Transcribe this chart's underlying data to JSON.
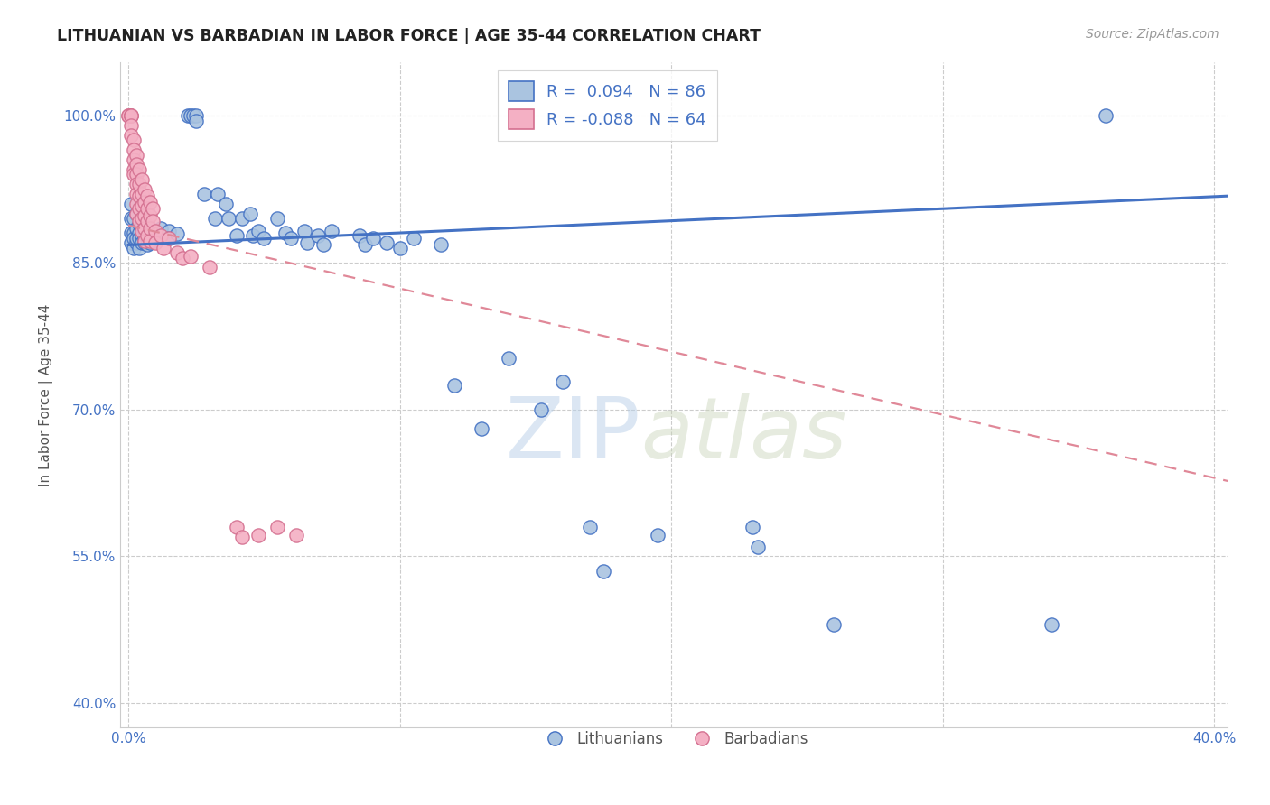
{
  "title": "LITHUANIAN VS BARBADIAN IN LABOR FORCE | AGE 35-44 CORRELATION CHART",
  "source": "Source: ZipAtlas.com",
  "ylabel": "In Labor Force | Age 35-44",
  "y_ticks": [
    0.4,
    0.55,
    0.7,
    0.85,
    1.0
  ],
  "y_tick_labels": [
    "40.0%",
    "55.0%",
    "70.0%",
    "85.0%",
    "100.0%"
  ],
  "xlim": [
    -0.003,
    0.405
  ],
  "ylim": [
    0.375,
    1.055
  ],
  "background_color": "#ffffff",
  "grid_color": "#cccccc",
  "watermark_text": "ZIPatlas",
  "legend_R_blue": "0.094",
  "legend_N_blue": "86",
  "legend_R_pink": "-0.088",
  "legend_N_pink": "64",
  "blue_fill": "#aac4e0",
  "blue_edge": "#4472c4",
  "pink_fill": "#f4b0c4",
  "pink_edge": "#d47090",
  "blue_trend": [
    0.0,
    0.868,
    0.405,
    0.918
  ],
  "pink_trend": [
    0.0,
    0.888,
    0.405,
    0.627
  ],
  "blue_scatter": [
    [
      0.001,
      0.88
    ],
    [
      0.001,
      0.895
    ],
    [
      0.001,
      0.87
    ],
    [
      0.001,
      0.91
    ],
    [
      0.002,
      0.865
    ],
    [
      0.002,
      0.88
    ],
    [
      0.002,
      0.895
    ],
    [
      0.002,
      0.875
    ],
    [
      0.003,
      0.87
    ],
    [
      0.003,
      0.885
    ],
    [
      0.003,
      0.9
    ],
    [
      0.003,
      0.875
    ],
    [
      0.004,
      0.88
    ],
    [
      0.004,
      0.89
    ],
    [
      0.004,
      0.875
    ],
    [
      0.004,
      0.865
    ],
    [
      0.005,
      0.878
    ],
    [
      0.005,
      0.888
    ],
    [
      0.005,
      0.898
    ],
    [
      0.005,
      0.87
    ],
    [
      0.006,
      0.882
    ],
    [
      0.006,
      0.875
    ],
    [
      0.006,
      0.89
    ],
    [
      0.006,
      0.87
    ],
    [
      0.007,
      0.88
    ],
    [
      0.007,
      0.875
    ],
    [
      0.007,
      0.868
    ],
    [
      0.008,
      0.885
    ],
    [
      0.008,
      0.878
    ],
    [
      0.008,
      0.87
    ],
    [
      0.009,
      0.882
    ],
    [
      0.009,
      0.875
    ],
    [
      0.01,
      0.88
    ],
    [
      0.01,
      0.872
    ],
    [
      0.012,
      0.878
    ],
    [
      0.012,
      0.885
    ],
    [
      0.015,
      0.882
    ],
    [
      0.015,
      0.875
    ],
    [
      0.018,
      0.879
    ],
    [
      0.022,
      1.0
    ],
    [
      0.023,
      1.0
    ],
    [
      0.024,
      1.0
    ],
    [
      0.025,
      1.0
    ],
    [
      0.025,
      0.995
    ],
    [
      0.028,
      0.92
    ],
    [
      0.032,
      0.895
    ],
    [
      0.033,
      0.92
    ],
    [
      0.036,
      0.91
    ],
    [
      0.037,
      0.895
    ],
    [
      0.04,
      0.878
    ],
    [
      0.042,
      0.895
    ],
    [
      0.045,
      0.9
    ],
    [
      0.046,
      0.878
    ],
    [
      0.048,
      0.882
    ],
    [
      0.05,
      0.875
    ],
    [
      0.055,
      0.895
    ],
    [
      0.058,
      0.88
    ],
    [
      0.06,
      0.875
    ],
    [
      0.065,
      0.882
    ],
    [
      0.066,
      0.87
    ],
    [
      0.07,
      0.878
    ],
    [
      0.072,
      0.868
    ],
    [
      0.075,
      0.882
    ],
    [
      0.085,
      0.878
    ],
    [
      0.087,
      0.868
    ],
    [
      0.09,
      0.875
    ],
    [
      0.095,
      0.87
    ],
    [
      0.1,
      0.865
    ],
    [
      0.105,
      0.875
    ],
    [
      0.115,
      0.868
    ],
    [
      0.12,
      0.725
    ],
    [
      0.13,
      0.68
    ],
    [
      0.14,
      0.752
    ],
    [
      0.152,
      0.7
    ],
    [
      0.16,
      0.728
    ],
    [
      0.17,
      0.58
    ],
    [
      0.175,
      0.535
    ],
    [
      0.195,
      0.572
    ],
    [
      0.23,
      0.58
    ],
    [
      0.232,
      0.56
    ],
    [
      0.26,
      0.48
    ],
    [
      0.34,
      0.48
    ],
    [
      0.36,
      1.0
    ]
  ],
  "pink_scatter": [
    [
      0.0,
      1.0
    ],
    [
      0.0,
      1.0
    ],
    [
      0.001,
      1.0
    ],
    [
      0.001,
      1.0
    ],
    [
      0.001,
      1.0
    ],
    [
      0.001,
      0.99
    ],
    [
      0.001,
      0.98
    ],
    [
      0.002,
      0.975
    ],
    [
      0.002,
      0.965
    ],
    [
      0.002,
      0.955
    ],
    [
      0.002,
      0.945
    ],
    [
      0.002,
      0.94
    ],
    [
      0.003,
      0.96
    ],
    [
      0.003,
      0.95
    ],
    [
      0.003,
      0.94
    ],
    [
      0.003,
      0.93
    ],
    [
      0.003,
      0.92
    ],
    [
      0.003,
      0.91
    ],
    [
      0.003,
      0.9
    ],
    [
      0.004,
      0.945
    ],
    [
      0.004,
      0.93
    ],
    [
      0.004,
      0.918
    ],
    [
      0.004,
      0.905
    ],
    [
      0.004,
      0.892
    ],
    [
      0.005,
      0.935
    ],
    [
      0.005,
      0.92
    ],
    [
      0.005,
      0.908
    ],
    [
      0.005,
      0.895
    ],
    [
      0.005,
      0.882
    ],
    [
      0.006,
      0.925
    ],
    [
      0.006,
      0.912
    ],
    [
      0.006,
      0.898
    ],
    [
      0.006,
      0.885
    ],
    [
      0.006,
      0.872
    ],
    [
      0.007,
      0.918
    ],
    [
      0.007,
      0.905
    ],
    [
      0.007,
      0.892
    ],
    [
      0.007,
      0.878
    ],
    [
      0.008,
      0.912
    ],
    [
      0.008,
      0.898
    ],
    [
      0.008,
      0.885
    ],
    [
      0.008,
      0.872
    ],
    [
      0.009,
      0.905
    ],
    [
      0.009,
      0.892
    ],
    [
      0.01,
      0.882
    ],
    [
      0.01,
      0.87
    ],
    [
      0.012,
      0.878
    ],
    [
      0.013,
      0.865
    ],
    [
      0.015,
      0.875
    ],
    [
      0.018,
      0.86
    ],
    [
      0.02,
      0.855
    ],
    [
      0.023,
      0.856
    ],
    [
      0.03,
      0.845
    ],
    [
      0.04,
      0.58
    ],
    [
      0.042,
      0.57
    ],
    [
      0.048,
      0.572
    ],
    [
      0.055,
      0.58
    ],
    [
      0.062,
      0.572
    ]
  ]
}
